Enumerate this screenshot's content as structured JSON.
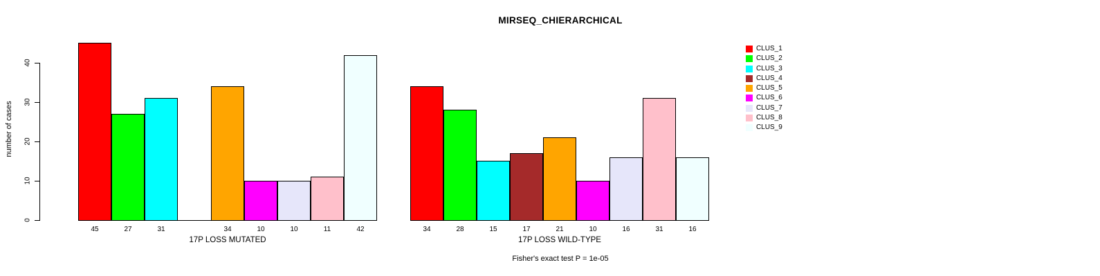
{
  "chart_data": {
    "type": "bar",
    "title": "MIRSEQ_CHIERARCHICAL",
    "ylabel": "number of cases",
    "footnote": "Fisher's exact test P = 1e-05",
    "grid": false,
    "legend_position": "right",
    "yticks": [
      0,
      10,
      20,
      30,
      40
    ],
    "ylim": [
      0,
      46
    ],
    "bar_border_color": "#000000",
    "clusters": [
      {
        "label": "CLUS_1",
        "color": "#FF0000"
      },
      {
        "label": "CLUS_2",
        "color": "#00FF00"
      },
      {
        "label": "CLUS_3",
        "color": "#00FFFF"
      },
      {
        "label": "CLUS_4",
        "color": "#A52A2A"
      },
      {
        "label": "CLUS_5",
        "color": "#FFA500"
      },
      {
        "label": "CLUS_6",
        "color": "#FF00FF"
      },
      {
        "label": "CLUS_7",
        "color": "#E6E6FA"
      },
      {
        "label": "CLUS_8",
        "color": "#FFC0CB"
      },
      {
        "label": "CLUS_9",
        "color": "#F0FFFF"
      }
    ],
    "groups": [
      {
        "label": "17P LOSS MUTATED",
        "values": [
          45,
          27,
          31,
          0,
          34,
          10,
          10,
          11,
          42
        ]
      },
      {
        "label": "17P LOSS WILD-TYPE",
        "values": [
          34,
          28,
          15,
          17,
          21,
          10,
          16,
          31,
          16
        ]
      }
    ]
  }
}
